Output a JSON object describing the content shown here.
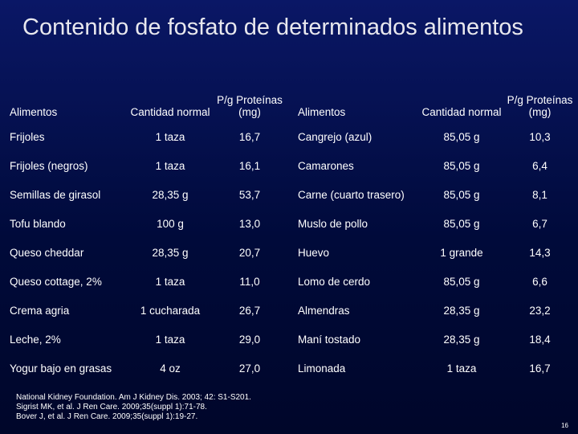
{
  "slide": {
    "title": "Contenido de fosfato de determinados alimentos",
    "page_number": "16",
    "background": "#000a3a"
  },
  "left_table": {
    "headers": {
      "food": "Alimentos",
      "amount": "Cantidad normal",
      "ratio": "P/g Proteínas (mg)"
    },
    "rows": [
      {
        "food": "Frijoles",
        "amount": "1 taza",
        "ratio": "16,7"
      },
      {
        "food": "Frijoles (negros)",
        "amount": "1 taza",
        "ratio": "16,1"
      },
      {
        "food": "Semillas de girasol",
        "amount": "28,35 g",
        "ratio": "53,7"
      },
      {
        "food": "Tofu blando",
        "amount": "100 g",
        "ratio": "13,0"
      },
      {
        "food": "Queso cheddar",
        "amount": "28,35 g",
        "ratio": "20,7"
      },
      {
        "food": "Queso cottage, 2%",
        "amount": "1 taza",
        "ratio": "11,0"
      },
      {
        "food": "Crema agria",
        "amount": "1 cucharada",
        "ratio": "26,7"
      },
      {
        "food": "Leche, 2%",
        "amount": "1 taza",
        "ratio": "29,0"
      },
      {
        "food": "Yogur bajo en grasas",
        "amount": "4 oz",
        "ratio": "27,0"
      }
    ]
  },
  "right_table": {
    "headers": {
      "food": "Alimentos",
      "amount": "Cantidad normal",
      "ratio": "P/g Proteínas (mg)"
    },
    "rows": [
      {
        "food": "Cangrejo (azul)",
        "amount": "85,05 g",
        "ratio": "10,3"
      },
      {
        "food": "Camarones",
        "amount": "85,05 g",
        "ratio": "6,4"
      },
      {
        "food": "Carne (cuarto trasero)",
        "amount": "85,05 g",
        "ratio": "8,1"
      },
      {
        "food": "Muslo de pollo",
        "amount": "85,05 g",
        "ratio": "6,7"
      },
      {
        "food": "Huevo",
        "amount": "1 grande",
        "ratio": "14,3"
      },
      {
        "food": "Lomo de cerdo",
        "amount": "85,05 g",
        "ratio": "6,6"
      },
      {
        "food": "Almendras",
        "amount": "28,35 g",
        "ratio": "23,2"
      },
      {
        "food": "Maní tostado",
        "amount": "28,35 g",
        "ratio": "18,4"
      },
      {
        "food": "Limonada",
        "amount": "1 taza",
        "ratio": "16,7"
      }
    ]
  },
  "references": [
    "National Kidney Foundation. Am J Kidney Dis. 2003; 42: S1-S201.",
    "Sigrist MK, et al. J Ren Care. 2009;35(suppl 1):71-78.",
    "Bover J, et al. J Ren Care. 2009;35(suppl 1):19-27."
  ]
}
